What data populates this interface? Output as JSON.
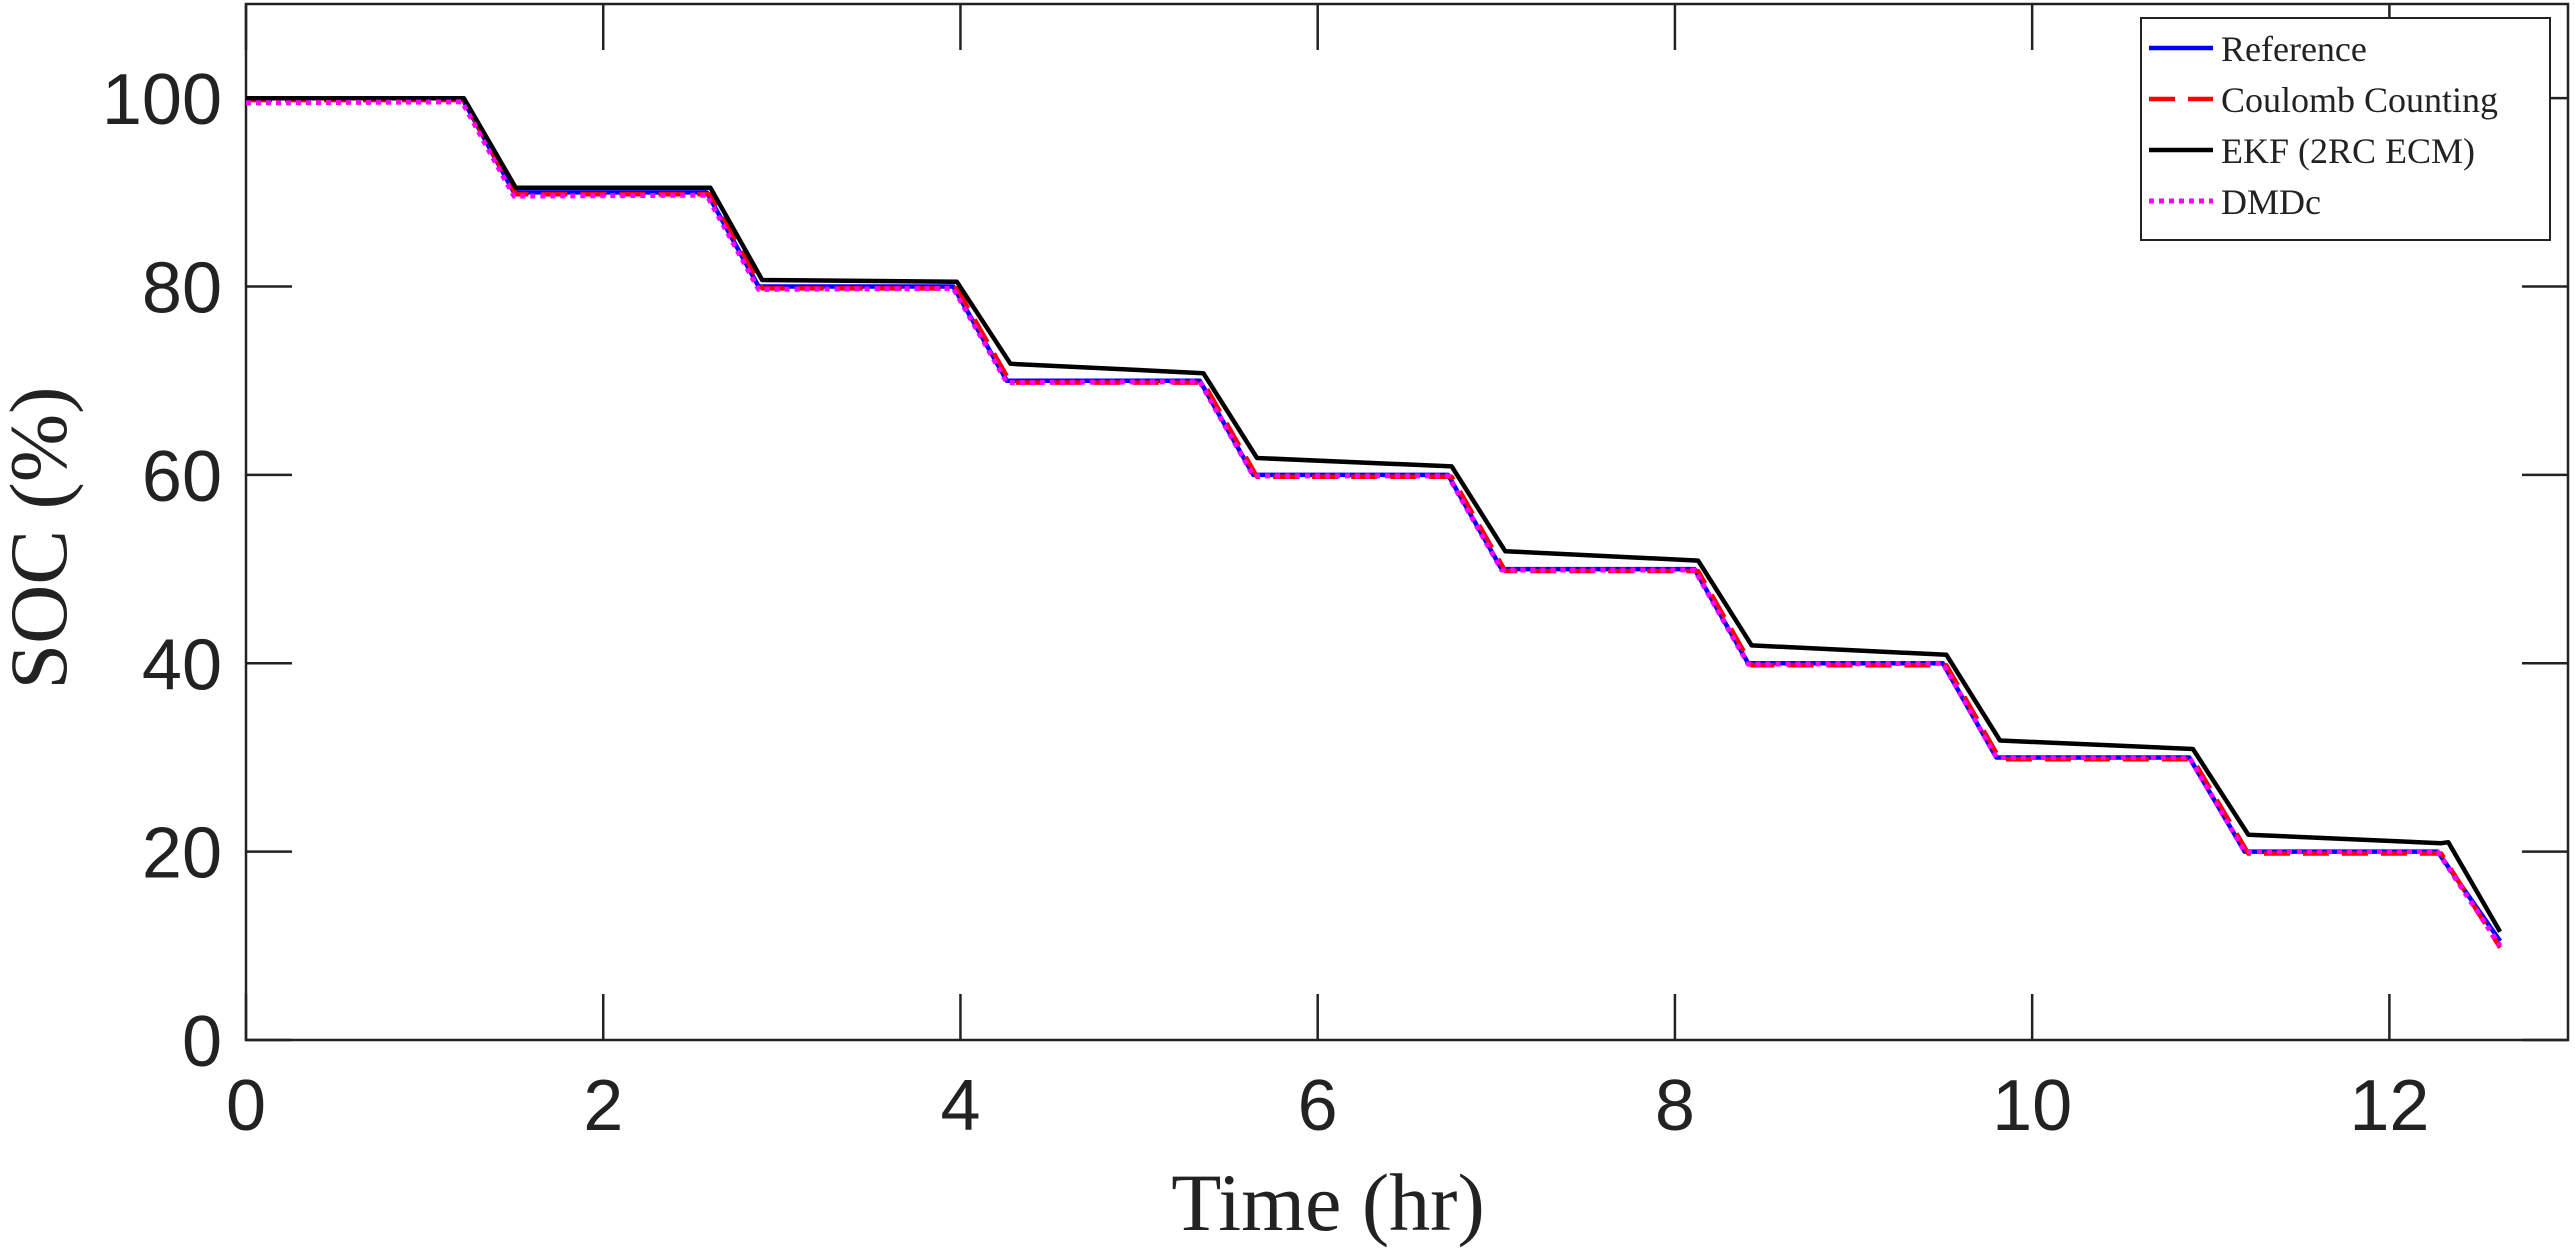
{
  "chart_data": {
    "type": "line",
    "title": "",
    "xlabel": "Time (hr)",
    "ylabel": "SOC (%)",
    "xlim": [
      0,
      13
    ],
    "ylim": [
      0,
      110
    ],
    "xticks": [
      0,
      2,
      4,
      6,
      8,
      10,
      12
    ],
    "yticks": [
      0,
      20,
      40,
      60,
      80,
      100
    ],
    "grid": false,
    "legend_position": "top-right",
    "series": [
      {
        "name": "Reference",
        "color": "#0000ff",
        "dash": "solid",
        "x": [
          0,
          1.21,
          1.5,
          2.58,
          2.87,
          3.96,
          4.26,
          5.34,
          5.64,
          6.73,
          7.03,
          8.11,
          8.41,
          9.5,
          9.8,
          10.88,
          11.19,
          12.27,
          12.62
        ],
        "y": [
          100,
          100,
          90,
          90,
          80,
          80,
          70,
          70,
          60,
          60,
          50,
          50,
          40,
          40,
          30,
          30,
          20,
          20,
          10.5
        ]
      },
      {
        "name": "Coulomb Counting",
        "color": "#ff0000",
        "dash": "dashed",
        "x": [
          0,
          1.22,
          1.51,
          2.6,
          2.89,
          3.98,
          4.28,
          5.36,
          5.66,
          6.75,
          7.05,
          8.13,
          8.43,
          9.52,
          9.82,
          10.9,
          11.21,
          12.29,
          12.62
        ],
        "y": [
          99.8,
          99.8,
          89.8,
          89.8,
          79.8,
          79.8,
          69.8,
          69.8,
          59.8,
          59.8,
          49.8,
          49.8,
          39.8,
          39.8,
          29.8,
          29.8,
          19.8,
          19.8,
          9.8
        ]
      },
      {
        "name": "EKF (2RC ECM)",
        "color": "#000000",
        "dash": "solid",
        "x": [
          0,
          1.22,
          1.51,
          2.6,
          2.89,
          3.98,
          4.28,
          5.36,
          5.66,
          6.75,
          7.05,
          8.13,
          8.43,
          9.52,
          9.82,
          10.9,
          11.21,
          12.29,
          12.33,
          12.62
        ],
        "y": [
          100,
          100,
          90.5,
          90.5,
          80.7,
          80.5,
          71.8,
          70.8,
          61.8,
          60.9,
          51.9,
          50.9,
          41.9,
          40.9,
          31.8,
          30.9,
          21.8,
          20.9,
          21.0,
          11.5
        ]
      },
      {
        "name": "DMDc",
        "color": "#ff00ff",
        "dash": "dotted",
        "x": [
          0,
          1.21,
          1.5,
          2.58,
          2.87,
          3.96,
          4.26,
          5.34,
          5.64,
          6.73,
          7.03,
          8.11,
          8.41,
          9.5,
          9.8,
          10.88,
          11.19,
          12.27,
          12.62
        ],
        "y": [
          99.5,
          99.6,
          89.6,
          89.7,
          79.7,
          79.8,
          69.8,
          69.9,
          59.9,
          59.9,
          49.9,
          49.9,
          39.9,
          40.0,
          30.0,
          30.0,
          20.0,
          20.0,
          10.0
        ]
      }
    ]
  }
}
